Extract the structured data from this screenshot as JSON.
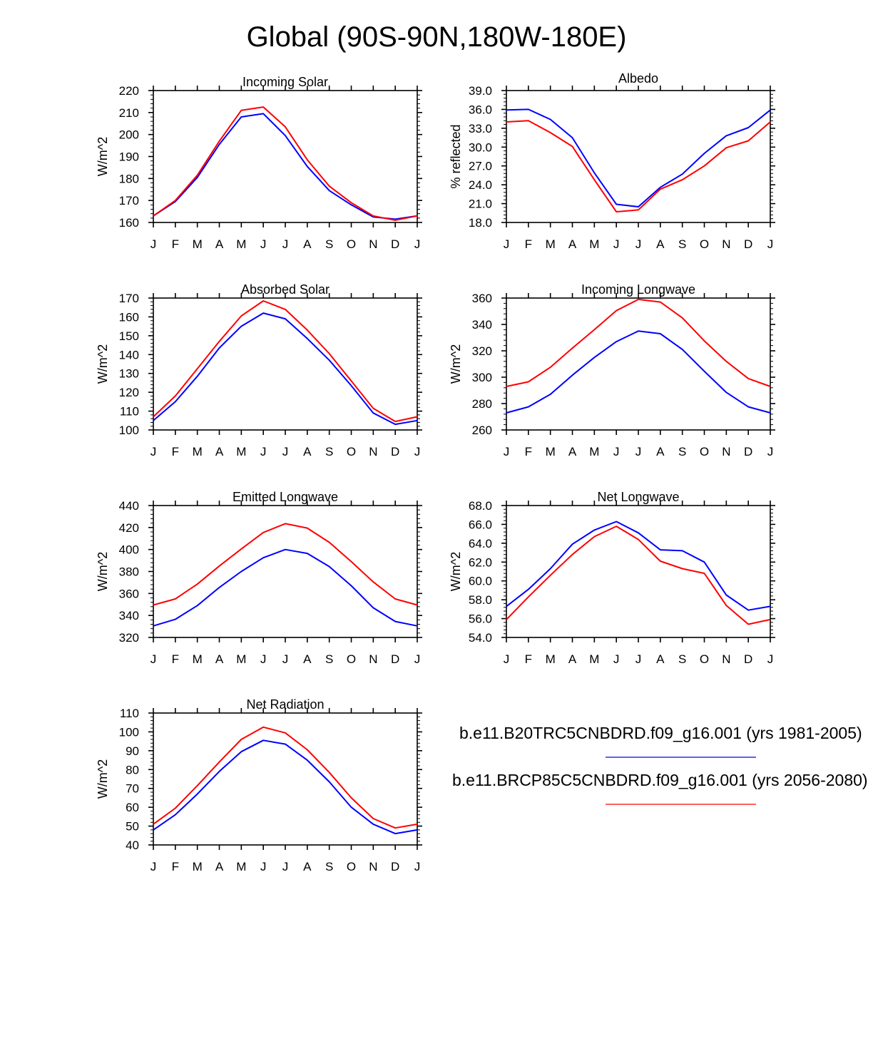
{
  "title": "Global (90S-90N,180W-180E)",
  "colors": {
    "series1": "#0000ff",
    "series2": "#ff0000",
    "axis": "#000000"
  },
  "legend": [
    {
      "label": "b.e11.B20TRC5CNBDRD.f09_g16.001 (yrs 1981-2005)",
      "color": "#0000ff"
    },
    {
      "label": "b.e11.BRCP85C5CNBDRD.f09_g16.001 (yrs 2056-2080)",
      "color": "#ff0000"
    }
  ],
  "chart_data": [
    {
      "type": "line",
      "title": "Incoming Solar",
      "ylabel": "W/m^2",
      "categories": [
        "J",
        "F",
        "M",
        "A",
        "M",
        "J",
        "J",
        "A",
        "S",
        "O",
        "N",
        "D",
        "J"
      ],
      "ylim": [
        160,
        220
      ],
      "yticks": [
        "160",
        "170",
        "180",
        "190",
        "200",
        "210",
        "220"
      ],
      "series": [
        {
          "name": "b.e11.B20TRC5CNBDRD.f09_g16.001 (yrs 1981-2005)",
          "color": "#0000ff",
          "values": [
            163,
            169.5,
            180.5,
            195.5,
            208,
            209.5,
            199.5,
            185.5,
            174.5,
            168,
            162.5,
            161.5,
            163
          ]
        },
        {
          "name": "b.e11.BRCP85C5CNBDRD.f09_g16.001 (yrs 2056-2080)",
          "color": "#ff0000",
          "values": [
            163,
            170,
            181.5,
            197,
            211,
            212.5,
            203.5,
            188.5,
            176.5,
            169,
            163,
            161,
            163
          ]
        }
      ]
    },
    {
      "type": "line",
      "title": "Albedo",
      "ylabel": "% reflected",
      "categories": [
        "J",
        "F",
        "M",
        "A",
        "M",
        "J",
        "J",
        "A",
        "S",
        "O",
        "N",
        "D",
        "J"
      ],
      "ylim": [
        18,
        39
      ],
      "yticks": [
        "18.0",
        "21.0",
        "24.0",
        "27.0",
        "30.0",
        "33.0",
        "36.0",
        "39.0"
      ],
      "series": [
        {
          "name": "b.e11.B20TRC5CNBDRD.f09_g16.001 (yrs 1981-2005)",
          "color": "#0000ff",
          "values": [
            35.9,
            36.0,
            34.4,
            31.5,
            25.9,
            20.9,
            20.5,
            23.6,
            25.7,
            29.0,
            31.8,
            33.1,
            35.9
          ]
        },
        {
          "name": "b.e11.BRCP85C5CNBDRD.f09_g16.001 (yrs 2056-2080)",
          "color": "#ff0000",
          "values": [
            34.0,
            34.2,
            32.3,
            30.1,
            24.8,
            19.7,
            20.0,
            23.3,
            24.8,
            27.0,
            29.9,
            31.0,
            34.0
          ]
        }
      ]
    },
    {
      "type": "line",
      "title": "Absorbed Solar",
      "ylabel": "W/m^2",
      "categories": [
        "J",
        "F",
        "M",
        "A",
        "M",
        "J",
        "J",
        "A",
        "S",
        "O",
        "N",
        "D",
        "J"
      ],
      "ylim": [
        100,
        170
      ],
      "yticks": [
        "100",
        "110",
        "120",
        "130",
        "140",
        "150",
        "160",
        "170"
      ],
      "series": [
        {
          "name": "b.e11.B20TRC5CNBDRD.f09_g16.001 (yrs 1981-2005)",
          "color": "#0000ff",
          "values": [
            105,
            115,
            128.5,
            143.5,
            155,
            162,
            159,
            148.5,
            137,
            123.5,
            109,
            103,
            105
          ]
        },
        {
          "name": "b.e11.BRCP85C5CNBDRD.f09_g16.001 (yrs 2056-2080)",
          "color": "#ff0000",
          "values": [
            107,
            118,
            132.5,
            147,
            160.5,
            168.5,
            164,
            153,
            140.5,
            126,
            111.5,
            104.5,
            107
          ]
        }
      ]
    },
    {
      "type": "line",
      "title": "Incoming Longwave",
      "ylabel": "W/m^2",
      "categories": [
        "J",
        "F",
        "M",
        "A",
        "M",
        "J",
        "J",
        "A",
        "S",
        "O",
        "N",
        "D",
        "J"
      ],
      "ylim": [
        260,
        360
      ],
      "yticks": [
        "260",
        "280",
        "300",
        "320",
        "340",
        "360"
      ],
      "series": [
        {
          "name": "b.e11.B20TRC5CNBDRD.f09_g16.001 (yrs 1981-2005)",
          "color": "#0000ff",
          "values": [
            273,
            277.5,
            287,
            301.5,
            315,
            327,
            335,
            333,
            321,
            304.5,
            288.5,
            277.5,
            273
          ]
        },
        {
          "name": "b.e11.BRCP85C5CNBDRD.f09_g16.001 (yrs 2056-2080)",
          "color": "#ff0000",
          "values": [
            293,
            296.5,
            307.5,
            322,
            336,
            350.5,
            359,
            357,
            345,
            327.5,
            312,
            299,
            293
          ]
        }
      ]
    },
    {
      "type": "line",
      "title": "Emitted Longwave",
      "ylabel": "W/m^2",
      "categories": [
        "J",
        "F",
        "M",
        "A",
        "M",
        "J",
        "J",
        "A",
        "S",
        "O",
        "N",
        "D",
        "J"
      ],
      "ylim": [
        320,
        440
      ],
      "yticks": [
        "320",
        "340",
        "360",
        "380",
        "400",
        "420",
        "440"
      ],
      "series": [
        {
          "name": "b.e11.B20TRC5CNBDRD.f09_g16.001 (yrs 1981-2005)",
          "color": "#0000ff",
          "values": [
            330.5,
            336.5,
            349,
            365.5,
            380,
            392.5,
            400,
            396.5,
            384.5,
            367,
            347,
            334.5,
            330.5
          ]
        },
        {
          "name": "b.e11.BRCP85C5CNBDRD.f09_g16.001 (yrs 2056-2080)",
          "color": "#ff0000",
          "values": [
            349.5,
            355,
            368.5,
            385,
            400.5,
            415.5,
            423.5,
            419.5,
            406.5,
            389,
            370.5,
            355,
            349.5
          ]
        }
      ]
    },
    {
      "type": "line",
      "title": "Net Longwave",
      "ylabel": "W/m^2",
      "categories": [
        "J",
        "F",
        "M",
        "A",
        "M",
        "J",
        "J",
        "A",
        "S",
        "O",
        "N",
        "D",
        "J"
      ],
      "ylim": [
        54,
        68
      ],
      "yticks": [
        "54.0",
        "56.0",
        "58.0",
        "60.0",
        "62.0",
        "64.0",
        "66.0",
        "68.0"
      ],
      "series": [
        {
          "name": "b.e11.B20TRC5CNBDRD.f09_g16.001 (yrs 1981-2005)",
          "color": "#0000ff",
          "values": [
            57.3,
            59.1,
            61.3,
            63.9,
            65.4,
            66.3,
            65.1,
            63.3,
            63.2,
            62.0,
            58.5,
            56.9,
            57.3
          ]
        },
        {
          "name": "b.e11.BRCP85C5CNBDRD.f09_g16.001 (yrs 2056-2080)",
          "color": "#ff0000",
          "values": [
            55.9,
            58.3,
            60.6,
            62.8,
            64.7,
            65.8,
            64.4,
            62.1,
            61.3,
            60.8,
            57.4,
            55.4,
            55.9
          ]
        }
      ]
    },
    {
      "type": "line",
      "title": "Net Radiation",
      "ylabel": "W/m^2",
      "categories": [
        "J",
        "F",
        "M",
        "A",
        "M",
        "J",
        "J",
        "A",
        "S",
        "O",
        "N",
        "D",
        "J"
      ],
      "ylim": [
        40,
        110
      ],
      "yticks": [
        "40",
        "50",
        "60",
        "70",
        "80",
        "90",
        "100",
        "110"
      ],
      "series": [
        {
          "name": "b.e11.B20TRC5CNBDRD.f09_g16.001 (yrs 1981-2005)",
          "color": "#0000ff",
          "values": [
            48,
            56,
            67,
            79,
            89.5,
            95.5,
            93.5,
            85,
            73.5,
            60,
            51,
            46,
            48
          ]
        },
        {
          "name": "b.e11.BRCP85C5CNBDRD.f09_g16.001 (yrs 2056-2080)",
          "color": "#ff0000",
          "values": [
            51,
            59.5,
            71.5,
            84,
            96,
            102.5,
            99.5,
            90.5,
            78.5,
            65,
            54,
            49,
            51
          ]
        }
      ]
    }
  ]
}
